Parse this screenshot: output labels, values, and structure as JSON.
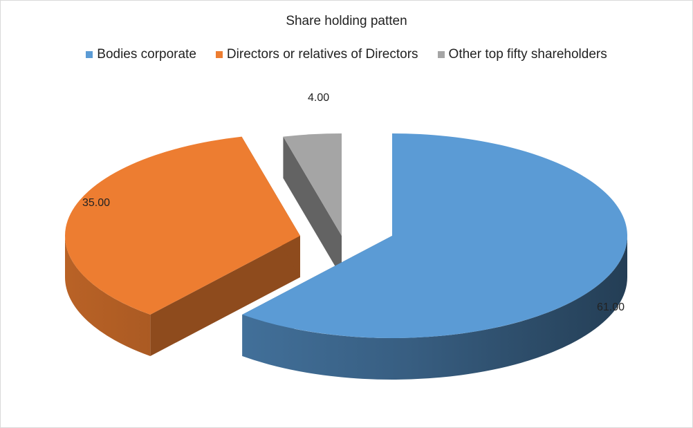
{
  "chart_data": {
    "type": "pie",
    "title": "Share holding patten",
    "legend_position": "top",
    "style": "3d-exploded",
    "slices": [
      {
        "label": "Bodies corporate",
        "value": 61.0,
        "value_label": "61.00",
        "color": "#5b9bd5"
      },
      {
        "label": "Directors or relatives of Directors",
        "value": 35.0,
        "value_label": "35.00",
        "color": "#ed7d31"
      },
      {
        "label": "Other top fifty shareholders",
        "value": 4.0,
        "value_label": "4.00",
        "color": "#a5a5a5"
      }
    ]
  }
}
